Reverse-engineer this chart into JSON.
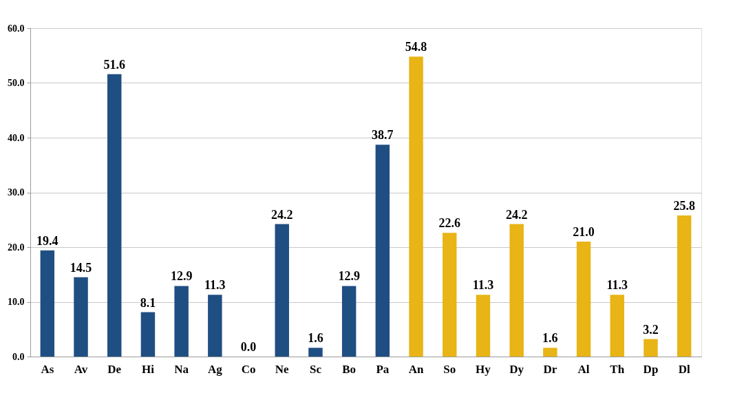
{
  "chart_data": {
    "type": "bar",
    "categories": [
      "As",
      "Av",
      "De",
      "Hi",
      "Na",
      "Ag",
      "Co",
      "Ne",
      "Sc",
      "Bo",
      "Pa",
      "An",
      "So",
      "Hy",
      "Dy",
      "Dr",
      "Al",
      "Th",
      "Dp",
      "Dl"
    ],
    "values": [
      19.4,
      14.5,
      51.6,
      8.1,
      12.9,
      11.3,
      0.0,
      24.2,
      1.6,
      12.9,
      38.7,
      54.8,
      22.6,
      11.3,
      24.2,
      1.6,
      21.0,
      11.3,
      3.2,
      25.8
    ],
    "colors": [
      "#1f4e82",
      "#1f4e82",
      "#1f4e82",
      "#1f4e82",
      "#1f4e82",
      "#1f4e82",
      "#1f4e82",
      "#1f4e82",
      "#1f4e82",
      "#1f4e82",
      "#1f4e82",
      "#e8b416",
      "#e8b416",
      "#e8b416",
      "#e8b416",
      "#e8b416",
      "#e8b416",
      "#e8b416",
      "#e8b416",
      "#e8b416"
    ],
    "value_labels": [
      "19.4",
      "14.5",
      "51.6",
      "8.1",
      "12.9",
      "11.3",
      "0.0",
      "24.2",
      "1.6",
      "12.9",
      "38.7",
      "54.8",
      "22.6",
      "11.3",
      "24.2",
      "1.6",
      "21.0",
      "11.3",
      "3.2",
      "25.8"
    ],
    "ylim": [
      0,
      60
    ],
    "yticks": [
      {
        "value": 0,
        "label": "0.0"
      },
      {
        "value": 10,
        "label": "10.0"
      },
      {
        "value": 20,
        "label": "20.0"
      },
      {
        "value": 30,
        "label": "30.0"
      },
      {
        "value": 40,
        "label": "40.0"
      },
      {
        "value": 50,
        "label": "50.0"
      },
      {
        "value": 60,
        "label": "60.0"
      }
    ],
    "grid": "y"
  }
}
